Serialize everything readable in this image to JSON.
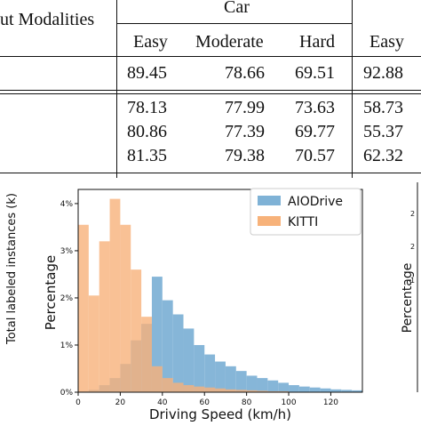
{
  "table": {
    "header_left": "ut Modalities",
    "group_header": "Car",
    "subheaders": [
      "Easy",
      "Moderate",
      "Hard",
      "Easy"
    ],
    "row_main": [
      "89.45",
      "78.66",
      "69.51",
      "92.88"
    ],
    "rows": [
      [
        "78.13",
        "77.99",
        "73.63",
        "58.73"
      ],
      [
        "80.86",
        "77.39",
        "69.77",
        "55.37"
      ],
      [
        "81.35",
        "79.38",
        "70.57",
        "62.32"
      ]
    ]
  },
  "left_axis_label": "Total labeled instances (k)",
  "chart_data": {
    "type": "histogram",
    "xlabel": "Driving Speed (km/h)",
    "ylabel": "Percentage",
    "xticks": [
      "0",
      "20",
      "40",
      "60",
      "80",
      "100",
      "120"
    ],
    "yticks": [
      "0%",
      "1%",
      "2%",
      "3%",
      "4%"
    ],
    "xlim": [
      0,
      135
    ],
    "ylim": [
      0,
      4.3
    ],
    "bin_width": 5,
    "grid": false,
    "legend_position": "top-right",
    "series": [
      {
        "name": "AIODrive",
        "color": "#7fb2d6",
        "values": [
          0.02,
          0.05,
          0.15,
          0.3,
          0.6,
          1.1,
          1.45,
          2.45,
          1.95,
          1.65,
          1.35,
          1.0,
          0.8,
          0.65,
          0.55,
          0.45,
          0.35,
          0.3,
          0.25,
          0.2,
          0.15,
          0.12,
          0.1,
          0.08,
          0.06,
          0.05,
          0.04
        ]
      },
      {
        "name": "KITTI",
        "color": "#f7b27a",
        "values": [
          3.55,
          2.05,
          3.2,
          4.1,
          3.55,
          2.6,
          1.6,
          0.55,
          0.3,
          0.2,
          0.15,
          0.12,
          0.1,
          0.08,
          0.06,
          0.05,
          0.04,
          0.03,
          0.02,
          0.02,
          0.01,
          0.0,
          0.0,
          0.0,
          0.0,
          0.0,
          0.0
        ]
      }
    ]
  },
  "right_partial": {
    "ylabel": "Percentage",
    "ticks": [
      "2",
      "2",
      "1"
    ]
  }
}
